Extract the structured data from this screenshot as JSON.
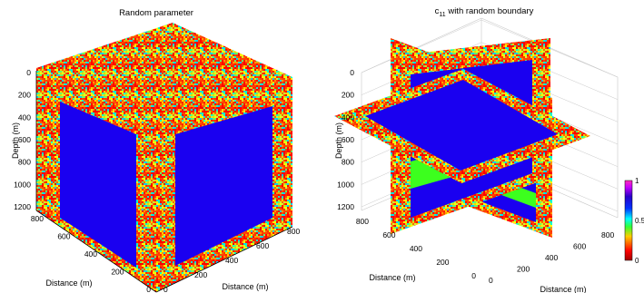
{
  "chart_data": [
    {
      "type": "heatmap",
      "title": "Random parameter",
      "zlabel": "Depth (m)",
      "xlabel": "Distance (m)",
      "ylabel": "Distance (m)",
      "depth_ticks": [
        "0",
        "200",
        "400",
        "600",
        "800",
        "1000",
        "1200"
      ],
      "x_ticks": [
        "0",
        "200",
        "400",
        "600",
        "800"
      ],
      "y_ticks": [
        "0",
        "200",
        "400",
        "600",
        "800"
      ],
      "xlim": [
        0,
        900
      ],
      "ylim": [
        0,
        900
      ],
      "zlim": [
        0,
        1250
      ],
      "boundary_width_m": 100,
      "interior_value": 0,
      "boundary_values": "random 0-1",
      "grid": false,
      "view": "3D cube, all faces shown"
    },
    {
      "type": "heatmap",
      "title": "c",
      "title_subscript": "11",
      "title_suffix": " with random boundary",
      "zlabel": "Depth (m)",
      "xlabel": "Distance (m)",
      "ylabel": "Distance (m)",
      "depth_ticks": [
        "0",
        "200",
        "400",
        "600",
        "800",
        "1000",
        "1200"
      ],
      "x_ticks": [
        "0",
        "200",
        "400",
        "600",
        "800"
      ],
      "y_ticks": [
        "0",
        "200",
        "400",
        "600",
        "800"
      ],
      "xlim": [
        0,
        900
      ],
      "ylim": [
        0,
        900
      ],
      "zlim": [
        0,
        1250
      ],
      "slices": [
        "x = 450",
        "y = 450",
        "z = 400"
      ],
      "interior_layers": [
        {
          "from_depth": 0,
          "to_depth": 700,
          "value": 0.0
        },
        {
          "from_depth": 700,
          "to_depth": 900,
          "value": 0.3
        },
        {
          "from_depth": 900,
          "to_depth": 1250,
          "value": 0.0
        }
      ],
      "grid": true,
      "view": "3D orthogonal slices"
    }
  ],
  "colorbar": {
    "ticks": [
      "1",
      "0.5",
      "0"
    ],
    "values": [
      1,
      0.5,
      0
    ],
    "colormap": "jet",
    "range": [
      0,
      1
    ]
  },
  "colors": {
    "interior_blue": "#1a00f0",
    "layer_green": "#3cff1e",
    "grid": "#c8c8c8"
  }
}
